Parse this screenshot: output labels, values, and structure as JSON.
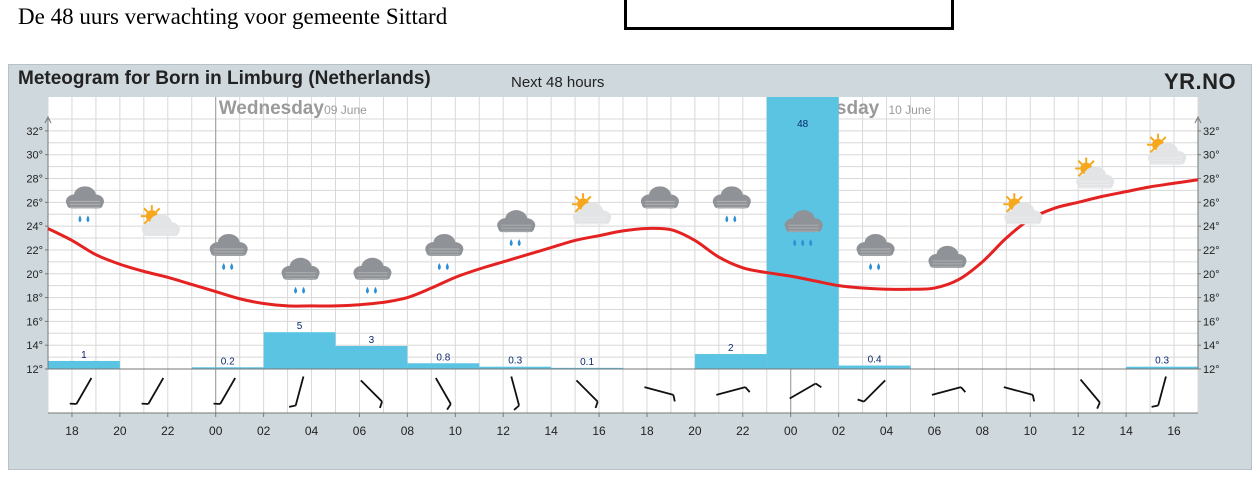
{
  "page": {
    "heading": "De 48 uurs verwachting voor gemeente Sittard"
  },
  "meteogram": {
    "title": "Meteogram for Born in Limburg (Netherlands)",
    "subtitle": "Next 48 hours",
    "logo": "YR.NO"
  },
  "colors": {
    "temperature_line": "#e52222",
    "precipitation_bar": "#5ac4e2",
    "cloud": "#8f9296",
    "sun": "#f5a81d"
  },
  "chart_data": {
    "type": "line",
    "days": [
      {
        "name": "Wednesday",
        "date": "09 June",
        "hour": 24
      },
      {
        "name": "Thursday",
        "date": "10 June",
        "hour": 48
      }
    ],
    "x_ticks": [
      "18",
      "20",
      "22",
      "00",
      "02",
      "04",
      "06",
      "08",
      "10",
      "12",
      "14",
      "16",
      "18",
      "20",
      "22",
      "00",
      "02",
      "04",
      "06",
      "08",
      "10",
      "12",
      "14",
      "16"
    ],
    "xlim_hours": [
      17,
      65
    ],
    "y_ticks": [
      "12°",
      "14°",
      "16°",
      "18°",
      "20°",
      "22°",
      "24°",
      "26°",
      "28°",
      "30°",
      "32°"
    ],
    "ylim": [
      12,
      33
    ],
    "grid": true,
    "temperature": [
      {
        "h": 17,
        "t": 23.8
      },
      {
        "h": 18,
        "t": 22.8
      },
      {
        "h": 19,
        "t": 21.6
      },
      {
        "h": 20,
        "t": 20.8
      },
      {
        "h": 21,
        "t": 20.2
      },
      {
        "h": 22,
        "t": 19.7
      },
      {
        "h": 23,
        "t": 19.1
      },
      {
        "h": 24,
        "t": 18.5
      },
      {
        "h": 25,
        "t": 17.9
      },
      {
        "h": 26,
        "t": 17.5
      },
      {
        "h": 27,
        "t": 17.3
      },
      {
        "h": 28,
        "t": 17.3
      },
      {
        "h": 29,
        "t": 17.3
      },
      {
        "h": 30,
        "t": 17.4
      },
      {
        "h": 31,
        "t": 17.6
      },
      {
        "h": 32,
        "t": 18.0
      },
      {
        "h": 33,
        "t": 18.8
      },
      {
        "h": 34,
        "t": 19.7
      },
      {
        "h": 35,
        "t": 20.4
      },
      {
        "h": 36,
        "t": 21.0
      },
      {
        "h": 37,
        "t": 21.6
      },
      {
        "h": 38,
        "t": 22.2
      },
      {
        "h": 39,
        "t": 22.8
      },
      {
        "h": 40,
        "t": 23.2
      },
      {
        "h": 41,
        "t": 23.6
      },
      {
        "h": 42,
        "t": 23.8
      },
      {
        "h": 43,
        "t": 23.7
      },
      {
        "h": 44,
        "t": 22.8
      },
      {
        "h": 45,
        "t": 21.4
      },
      {
        "h": 46,
        "t": 20.5
      },
      {
        "h": 47,
        "t": 20.1
      },
      {
        "h": 48,
        "t": 19.8
      },
      {
        "h": 49,
        "t": 19.4
      },
      {
        "h": 50,
        "t": 19.0
      },
      {
        "h": 51,
        "t": 18.8
      },
      {
        "h": 52,
        "t": 18.7
      },
      {
        "h": 53,
        "t": 18.7
      },
      {
        "h": 54,
        "t": 18.8
      },
      {
        "h": 55,
        "t": 19.5
      },
      {
        "h": 56,
        "t": 21.0
      },
      {
        "h": 57,
        "t": 23.0
      },
      {
        "h": 58,
        "t": 24.6
      },
      {
        "h": 59,
        "t": 25.5
      },
      {
        "h": 60,
        "t": 26.0
      },
      {
        "h": 61,
        "t": 26.5
      },
      {
        "h": 62,
        "t": 26.9
      },
      {
        "h": 63,
        "t": 27.3
      },
      {
        "h": 64,
        "t": 27.6
      },
      {
        "h": 65,
        "t": 27.9
      }
    ],
    "precipitation": [
      {
        "start": 17,
        "end": 20,
        "mm": "1",
        "level": 0.7
      },
      {
        "start": 23,
        "end": 26,
        "mm": "0.2",
        "level": 0.15
      },
      {
        "start": 26,
        "end": 29,
        "mm": "5",
        "level": 3.2
      },
      {
        "start": 29,
        "end": 32,
        "mm": "3",
        "level": 2.0
      },
      {
        "start": 32,
        "end": 35,
        "mm": "0.8",
        "level": 0.5
      },
      {
        "start": 35,
        "end": 38,
        "mm": "0.3",
        "level": 0.2
      },
      {
        "start": 38,
        "end": 41,
        "mm": "0.1",
        "level": 0.1
      },
      {
        "start": 44,
        "end": 47,
        "mm": "2",
        "level": 1.3
      },
      {
        "start": 47,
        "end": 50,
        "mm": "48",
        "level": 30
      },
      {
        "start": 50,
        "end": 53,
        "mm": "0.4",
        "level": 0.3
      },
      {
        "start": 62,
        "end": 65,
        "mm": "0.3",
        "level": 0.2
      }
    ],
    "symbols": [
      {
        "h": 18.5,
        "t": 26,
        "icon": "rain-cloud-icon"
      },
      {
        "h": 21.5,
        "t": 24,
        "icon": "partly-cloudy-icon"
      },
      {
        "h": 24.5,
        "t": 22,
        "icon": "rain-cloud-icon"
      },
      {
        "h": 27.5,
        "t": 20,
        "icon": "rain-cloud-icon"
      },
      {
        "h": 30.5,
        "t": 20,
        "icon": "rain-cloud-icon"
      },
      {
        "h": 33.5,
        "t": 22,
        "icon": "rain-cloud-icon"
      },
      {
        "h": 36.5,
        "t": 24,
        "icon": "rain-cloud-icon"
      },
      {
        "h": 39.5,
        "t": 25,
        "icon": "partly-cloudy-icon"
      },
      {
        "h": 42.5,
        "t": 26,
        "icon": "cloud-icon"
      },
      {
        "h": 45.5,
        "t": 26,
        "icon": "rain-cloud-icon"
      },
      {
        "h": 48.5,
        "t": 24,
        "icon": "heavy-rain-cloud-icon"
      },
      {
        "h": 51.5,
        "t": 22,
        "icon": "rain-cloud-icon"
      },
      {
        "h": 54.5,
        "t": 21,
        "icon": "cloud-icon"
      },
      {
        "h": 57.5,
        "t": 25,
        "icon": "partly-cloudy-icon"
      },
      {
        "h": 60.5,
        "t": 28,
        "icon": "partly-cloudy-icon"
      },
      {
        "h": 63.5,
        "t": 30,
        "icon": "partly-cloudy-icon"
      }
    ],
    "wind_direction_deg": [
      210,
      210,
      210,
      195,
      135,
      150,
      165,
      135,
      105,
      75,
      60,
      225,
      75,
      105,
      140,
      195
    ]
  }
}
